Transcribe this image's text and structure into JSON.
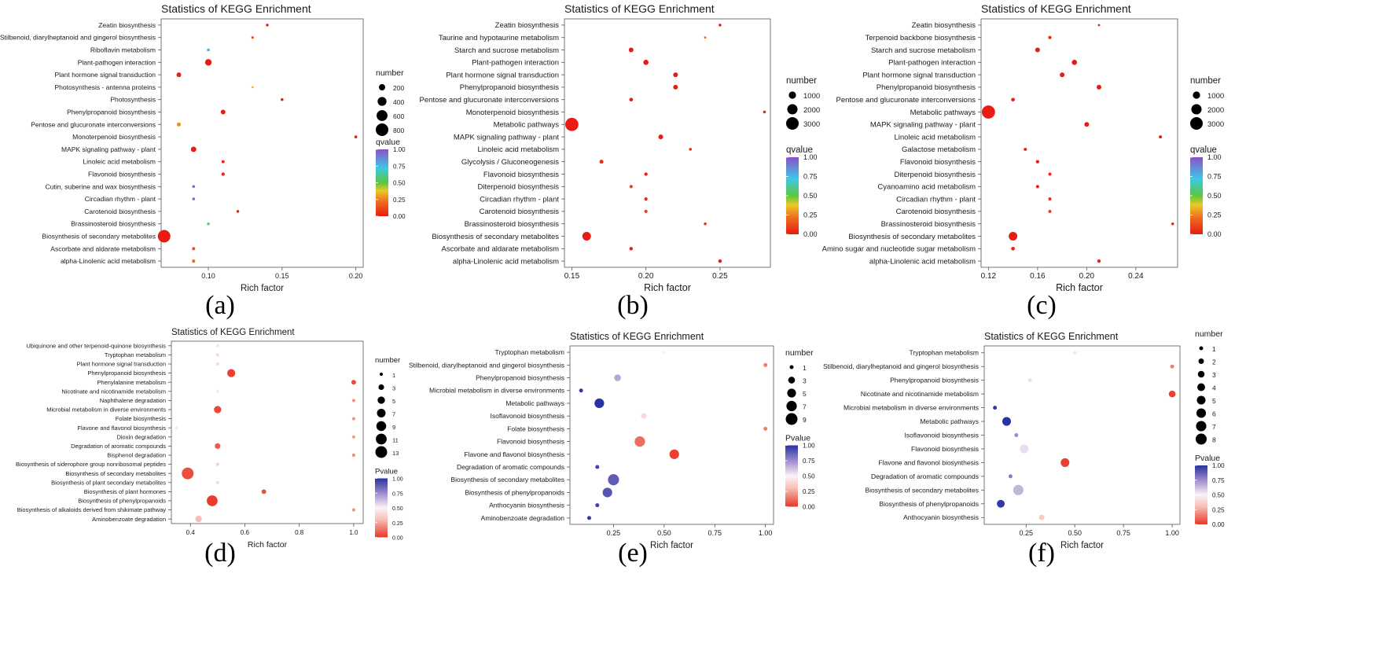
{
  "chart_data": [
    {
      "type": "scatter",
      "label": "(a)",
      "title": "Statistics of KEGG Enrichment",
      "xlabel": "Rich factor",
      "ylabel": "",
      "xlim": [
        0.068,
        0.205
      ],
      "xticks": [
        0.1,
        0.15,
        0.2
      ],
      "xtick_labels": [
        "0.10",
        "0.15",
        "0.20"
      ],
      "color_metric": "qvalue",
      "color_scale": "rainbow",
      "size_legend": {
        "title": "number",
        "values": [
          200,
          400,
          600,
          800
        ],
        "max": 800
      },
      "color_legend": {
        "title": "qvalue",
        "ticks": [
          "0.00",
          "0.25",
          "0.50",
          "0.75",
          "1.00"
        ]
      },
      "grid": false,
      "legend_position": "right",
      "categories": [
        "Zeatin biosynthesis",
        "Stilbenoid, diarylheptanoid and gingerol biosynthesis",
        "Riboflavin metabolism",
        "Plant-pathogen interaction",
        "Plant hormone signal transduction",
        "Photosynthesis - antenna proteins",
        "Photosynthesis",
        "Phenylpropanoid biosynthesis",
        "Pentose and glucuronate interconversions",
        "Monoterpenoid biosynthesis",
        "MAPK signaling pathway - plant",
        "Linoleic acid metabolism",
        "Flavonoid biosynthesis",
        "Cutin, suberine and wax biosynthesis",
        "Circadian rhythm - plant",
        "Carotenoid biosynthesis",
        "Brassinosteroid biosynthesis",
        "Biosynthesis of secondary metabolites",
        "Ascorbate and aldarate metabolism",
        "alpha-Linolenic acid metabolism"
      ],
      "points": [
        {
          "x": 0.14,
          "size": 40,
          "color": 0.03
        },
        {
          "x": 0.13,
          "size": 30,
          "color": 0.1
        },
        {
          "x": 0.1,
          "size": 40,
          "color": 0.78
        },
        {
          "x": 0.1,
          "size": 220,
          "color": 0.0
        },
        {
          "x": 0.08,
          "size": 110,
          "color": 0.02
        },
        {
          "x": 0.13,
          "size": 20,
          "color": 0.35
        },
        {
          "x": 0.15,
          "size": 40,
          "color": 0.02
        },
        {
          "x": 0.11,
          "size": 110,
          "color": 0.0
        },
        {
          "x": 0.08,
          "size": 80,
          "color": 0.28
        },
        {
          "x": 0.2,
          "size": 45,
          "color": 0.01
        },
        {
          "x": 0.09,
          "size": 150,
          "color": 0.0
        },
        {
          "x": 0.11,
          "size": 45,
          "color": 0.02
        },
        {
          "x": 0.11,
          "size": 55,
          "color": 0.01
        },
        {
          "x": 0.09,
          "size": 40,
          "color": 0.95
        },
        {
          "x": 0.09,
          "size": 40,
          "color": 0.93
        },
        {
          "x": 0.12,
          "size": 40,
          "color": 0.02
        },
        {
          "x": 0.1,
          "size": 35,
          "color": 0.55
        },
        {
          "x": 0.07,
          "size": 800,
          "color": 0.0
        },
        {
          "x": 0.09,
          "size": 55,
          "color": 0.15
        },
        {
          "x": 0.09,
          "size": 55,
          "color": 0.22
        }
      ]
    },
    {
      "type": "scatter",
      "label": "(b)",
      "title": "Statistics of KEGG Enrichment",
      "xlabel": "Rich factor",
      "ylabel": "",
      "xlim": [
        0.145,
        0.284
      ],
      "xticks": [
        0.15,
        0.2,
        0.25
      ],
      "xtick_labels": [
        "0.15",
        "0.20",
        "0.25"
      ],
      "color_metric": "qvalue",
      "color_scale": "rainbow",
      "size_legend": {
        "title": "number",
        "values": [
          1000,
          2000,
          3000
        ],
        "max": 3000
      },
      "color_legend": {
        "title": "qvalue",
        "ticks": [
          "0.00",
          "0.25",
          "0.50",
          "0.75",
          "1.00"
        ]
      },
      "grid": false,
      "legend_position": "right",
      "categories": [
        "Zeatin biosynthesis",
        "Taurine and hypotaurine metabolism",
        "Starch and sucrose metabolism",
        "Plant-pathogen interaction",
        "Plant hormone signal transduction",
        "Phenylpropanoid biosynthesis",
        "Pentose and glucuronate interconversions",
        "Monoterpenoid biosynthesis",
        "Metabolic pathways",
        "MAPK signaling pathway - plant",
        "Linoleic acid metabolism",
        "Glycolysis / Gluconeogenesis",
        "Flavonoid biosynthesis",
        "Diterpenoid biosynthesis",
        "Circadian rhythm - plant",
        "Carotenoid biosynthesis",
        "Brassinosteroid biosynthesis",
        "Biosynthesis of secondary metabolites",
        "Ascorbate and aldarate metabolism",
        "alpha-Linolenic acid metabolism"
      ],
      "points": [
        {
          "x": 0.25,
          "size": 150,
          "color": 0.02
        },
        {
          "x": 0.24,
          "size": 80,
          "color": 0.2
        },
        {
          "x": 0.19,
          "size": 420,
          "color": 0.0
        },
        {
          "x": 0.2,
          "size": 520,
          "color": 0.0
        },
        {
          "x": 0.22,
          "size": 420,
          "color": 0.0
        },
        {
          "x": 0.22,
          "size": 420,
          "color": 0.0
        },
        {
          "x": 0.19,
          "size": 260,
          "color": 0.01
        },
        {
          "x": 0.28,
          "size": 140,
          "color": 0.02
        },
        {
          "x": 0.15,
          "size": 3300,
          "color": 0.0
        },
        {
          "x": 0.21,
          "size": 420,
          "color": 0.0
        },
        {
          "x": 0.23,
          "size": 150,
          "color": 0.03
        },
        {
          "x": 0.17,
          "size": 300,
          "color": 0.05
        },
        {
          "x": 0.2,
          "size": 220,
          "color": 0.02
        },
        {
          "x": 0.19,
          "size": 200,
          "color": 0.08
        },
        {
          "x": 0.2,
          "size": 200,
          "color": 0.03
        },
        {
          "x": 0.2,
          "size": 200,
          "color": 0.09
        },
        {
          "x": 0.24,
          "size": 140,
          "color": 0.03
        },
        {
          "x": 0.16,
          "size": 1400,
          "color": 0.0
        },
        {
          "x": 0.19,
          "size": 220,
          "color": 0.01
        },
        {
          "x": 0.25,
          "size": 240,
          "color": 0.01
        }
      ]
    },
    {
      "type": "scatter",
      "label": "(c)",
      "title": "Statistics of KEGG Enrichment",
      "xlabel": "Rich factor",
      "ylabel": "",
      "xlim": [
        0.114,
        0.274
      ],
      "xticks": [
        0.12,
        0.16,
        0.2,
        0.24
      ],
      "xtick_labels": [
        "0.12",
        "0.16",
        "0.20",
        "0.24"
      ],
      "color_metric": "qvalue",
      "color_scale": "rainbow",
      "size_legend": {
        "title": "number",
        "values": [
          1000,
          2000,
          3000
        ],
        "max": 3000
      },
      "color_legend": {
        "title": "qvalue",
        "ticks": [
          "0.00",
          "0.25",
          "0.50",
          "0.75",
          "1.00"
        ]
      },
      "grid": false,
      "legend_position": "right",
      "categories": [
        "Zeatin biosynthesis",
        "Terpenoid backbone biosynthesis",
        "Starch and sucrose metabolism",
        "Plant-pathogen interaction",
        "Plant hormone signal transduction",
        "Phenylpropanoid biosynthesis",
        "Pentose and glucuronate interconversions",
        "Metabolic pathways",
        "MAPK signaling pathway - plant",
        "Linoleic acid metabolism",
        "Galactose metabolism",
        "Flavonoid biosynthesis",
        "Diterpenoid biosynthesis",
        "Cyanoamino acid metabolism",
        "Circadian rhythm - plant",
        "Carotenoid biosynthesis",
        "Brassinosteroid biosynthesis",
        "Biosynthesis of secondary metabolites",
        "Amino sugar and nucleotide sugar metabolism",
        "alpha-Linolenic acid metabolism"
      ],
      "points": [
        {
          "x": 0.21,
          "size": 100,
          "color": 0.03
        },
        {
          "x": 0.17,
          "size": 200,
          "color": 0.01
        },
        {
          "x": 0.16,
          "size": 420,
          "color": 0.0
        },
        {
          "x": 0.19,
          "size": 520,
          "color": 0.0
        },
        {
          "x": 0.18,
          "size": 420,
          "color": 0.0
        },
        {
          "x": 0.21,
          "size": 420,
          "color": 0.0
        },
        {
          "x": 0.14,
          "size": 260,
          "color": 0.02
        },
        {
          "x": 0.12,
          "size": 3300,
          "color": 0.0
        },
        {
          "x": 0.2,
          "size": 420,
          "color": 0.0
        },
        {
          "x": 0.26,
          "size": 180,
          "color": 0.01
        },
        {
          "x": 0.15,
          "size": 180,
          "color": 0.02
        },
        {
          "x": 0.16,
          "size": 220,
          "color": 0.02
        },
        {
          "x": 0.17,
          "size": 180,
          "color": 0.02
        },
        {
          "x": 0.16,
          "size": 200,
          "color": 0.02
        },
        {
          "x": 0.17,
          "size": 180,
          "color": 0.03
        },
        {
          "x": 0.17,
          "size": 180,
          "color": 0.06
        },
        {
          "x": 0.27,
          "size": 140,
          "color": 0.02
        },
        {
          "x": 0.14,
          "size": 1400,
          "color": 0.0
        },
        {
          "x": 0.14,
          "size": 260,
          "color": 0.03
        },
        {
          "x": 0.21,
          "size": 220,
          "color": 0.01
        }
      ]
    },
    {
      "type": "scatter",
      "label": "(d)",
      "title": "Statistics of KEGG Enrichment",
      "xlabel": "Rich factor",
      "ylabel": "",
      "xlim": [
        0.33,
        1.035
      ],
      "xticks": [
        0.4,
        0.6,
        0.8,
        1.0
      ],
      "xtick_labels": [
        "0.4",
        "0.6",
        "0.8",
        "1.0"
      ],
      "color_metric": "Pvalue",
      "color_scale": "diverging",
      "size_legend": {
        "title": "number",
        "values": [
          1,
          3,
          5,
          7,
          9,
          11,
          13
        ],
        "max": 13
      },
      "color_legend": {
        "title": "Pvalue",
        "ticks": [
          "0.00",
          "0.25",
          "0.50",
          "0.75",
          "1.00"
        ]
      },
      "grid": false,
      "legend_position": "right",
      "categories": [
        "Ubiquinone and other terpenoid-quinone biosynthesis",
        "Tryptophan metabolism",
        "Plant hormone signal transduction",
        "Phenylpropanoid biosynthesis",
        "Phenylalanine metabolism",
        "Nicotinate and nicotinamide metabolism",
        "Naphthalene degradation",
        "Microbial metabolism in diverse environments",
        "Folate biosynthesis",
        "Flavone and flavonol biosynthesis",
        "Dioxin degradation",
        "Degradation of aromatic compounds",
        "Bisphenol degradation",
        "Biosynthesis of siderophore group nonribosomal peptides",
        "Biosynthesis of secondary metabolites",
        "Biosynthesis of plant secondary metabolites",
        "Biosynthesis of plant hormones",
        "Biosynthesis of phenylpropanoids",
        "Biosynthesis of alkaloids derived from shikimate pathway",
        "Aminobenzoate degradation"
      ],
      "points": [
        {
          "x": 0.5,
          "size": 1,
          "color": 0.45
        },
        {
          "x": 0.5,
          "size": 1,
          "color": 0.4
        },
        {
          "x": 0.5,
          "size": 1,
          "color": 0.4
        },
        {
          "x": 0.55,
          "size": 6,
          "color": 0.02
        },
        {
          "x": 1.0,
          "size": 2,
          "color": 0.03
        },
        {
          "x": 0.5,
          "size": 1,
          "color": 0.45
        },
        {
          "x": 1.0,
          "size": 1,
          "color": 0.2
        },
        {
          "x": 0.5,
          "size": 5,
          "color": 0.03
        },
        {
          "x": 1.0,
          "size": 1,
          "color": 0.2
        },
        {
          "x": 0.35,
          "size": 1,
          "color": 0.45
        },
        {
          "x": 1.0,
          "size": 1,
          "color": 0.22
        },
        {
          "x": 0.5,
          "size": 3,
          "color": 0.08
        },
        {
          "x": 1.0,
          "size": 1,
          "color": 0.18
        },
        {
          "x": 0.5,
          "size": 1,
          "color": 0.35
        },
        {
          "x": 0.39,
          "size": 13,
          "color": 0.05
        },
        {
          "x": 0.5,
          "size": 1,
          "color": 0.4
        },
        {
          "x": 0.67,
          "size": 2,
          "color": 0.05
        },
        {
          "x": 0.48,
          "size": 11,
          "color": 0.01
        },
        {
          "x": 1.0,
          "size": 1,
          "color": 0.2
        },
        {
          "x": 0.43,
          "size": 4,
          "color": 0.3
        }
      ]
    },
    {
      "type": "scatter",
      "label": "(e)",
      "title": "Statistics of KEGG Enrichment",
      "xlabel": "Rich factor",
      "ylabel": "",
      "xlim": [
        0.035,
        1.04
      ],
      "xticks": [
        0.25,
        0.5,
        0.75,
        1.0
      ],
      "xtick_labels": [
        "0.25",
        "0.50",
        "0.75",
        "1.00"
      ],
      "color_metric": "Pvalue",
      "color_scale": "diverging",
      "size_legend": {
        "title": "number",
        "values": [
          1,
          3,
          5,
          7,
          9
        ],
        "max": 9
      },
      "color_legend": {
        "title": "Pvalue",
        "ticks": [
          "0.00",
          "0.25",
          "0.50",
          "0.75",
          "1.00"
        ]
      },
      "grid": false,
      "legend_position": "right",
      "categories": [
        "Tryptophan metabolism",
        "Stilbenoid, diarylheptanoid and gingerol biosynthesis",
        "Phenylpropanoid biosynthesis",
        "Microbial metabolism in diverse environments",
        "Metabolic pathways",
        "Isoflavonoid biosynthesis",
        "Folate biosynthesis",
        "Flavonoid biosynthesis",
        "Flavone and flavonol biosynthesis",
        "Degradation of aromatic compounds",
        "Biosynthesis of secondary metabolites",
        "Biosynthesis of phenylpropanoids",
        "Anthocyanin biosynthesis",
        "Aminobenzoate degradation"
      ],
      "points": [
        {
          "x": 0.5,
          "size": 1,
          "color": 0.5
        },
        {
          "x": 1.0,
          "size": 1,
          "color": 0.15
        },
        {
          "x": 0.27,
          "size": 3,
          "color": 0.68
        },
        {
          "x": 0.09,
          "size": 1,
          "color": 0.98
        },
        {
          "x": 0.18,
          "size": 6,
          "color": 1.0
        },
        {
          "x": 0.4,
          "size": 2,
          "color": 0.4
        },
        {
          "x": 1.0,
          "size": 1,
          "color": 0.15
        },
        {
          "x": 0.38,
          "size": 7,
          "color": 0.12
        },
        {
          "x": 0.55,
          "size": 6,
          "color": 0.02
        },
        {
          "x": 0.17,
          "size": 1,
          "color": 0.95
        },
        {
          "x": 0.25,
          "size": 8,
          "color": 0.88
        },
        {
          "x": 0.22,
          "size": 6,
          "color": 0.9
        },
        {
          "x": 0.17,
          "size": 1,
          "color": 0.95
        },
        {
          "x": 0.13,
          "size": 1,
          "color": 0.98
        }
      ]
    },
    {
      "type": "scatter",
      "label": "(f)",
      "title": "Statistics of KEGG Enrichment",
      "xlabel": "Rich factor",
      "ylabel": "",
      "xlim": [
        0.035,
        1.04
      ],
      "xticks": [
        0.25,
        0.5,
        0.75,
        1.0
      ],
      "xtick_labels": [
        "0.25",
        "0.50",
        "0.75",
        "1.00"
      ],
      "color_metric": "Pvalue",
      "color_scale": "diverging",
      "size_legend": {
        "title": "number",
        "values": [
          1,
          2,
          3,
          4,
          5,
          6,
          7,
          8
        ],
        "max": 8
      },
      "color_legend": {
        "title": "Pvalue",
        "ticks": [
          "0.00",
          "0.25",
          "0.50",
          "0.75",
          "1.00"
        ]
      },
      "grid": false,
      "legend_position": "right",
      "categories": [
        "Tryptophan metabolism",
        "Stilbenoid, diarylheptanoid and gingerol biosynthesis",
        "Phenylpropanoid biosynthesis",
        "Nicotinate and nicotinamide metabolism",
        "Microbial metabolism in diverse environments",
        "Metabolic pathways",
        "Isoflavonoid biosynthesis",
        "Flavonoid biosynthesis",
        "Flavone and flavonol biosynthesis",
        "Degradation of aromatic compounds",
        "Biosynthesis of secondary metabolites",
        "Biosynthesis of phenylpropanoids",
        "Anthocyanin biosynthesis"
      ],
      "points": [
        {
          "x": 0.5,
          "size": 1,
          "color": 0.45
        },
        {
          "x": 1.0,
          "size": 1,
          "color": 0.15
        },
        {
          "x": 0.27,
          "size": 1,
          "color": 0.55
        },
        {
          "x": 1.0,
          "size": 3,
          "color": 0.02
        },
        {
          "x": 0.09,
          "size": 1,
          "color": 0.98
        },
        {
          "x": 0.15,
          "size": 5,
          "color": 1.0
        },
        {
          "x": 0.2,
          "size": 1,
          "color": 0.75
        },
        {
          "x": 0.24,
          "size": 5,
          "color": 0.55
        },
        {
          "x": 0.45,
          "size": 5,
          "color": 0.02
        },
        {
          "x": 0.17,
          "size": 1,
          "color": 0.8
        },
        {
          "x": 0.21,
          "size": 7,
          "color": 0.65
        },
        {
          "x": 0.12,
          "size": 4,
          "color": 0.98
        },
        {
          "x": 0.33,
          "size": 2,
          "color": 0.35
        }
      ]
    }
  ]
}
